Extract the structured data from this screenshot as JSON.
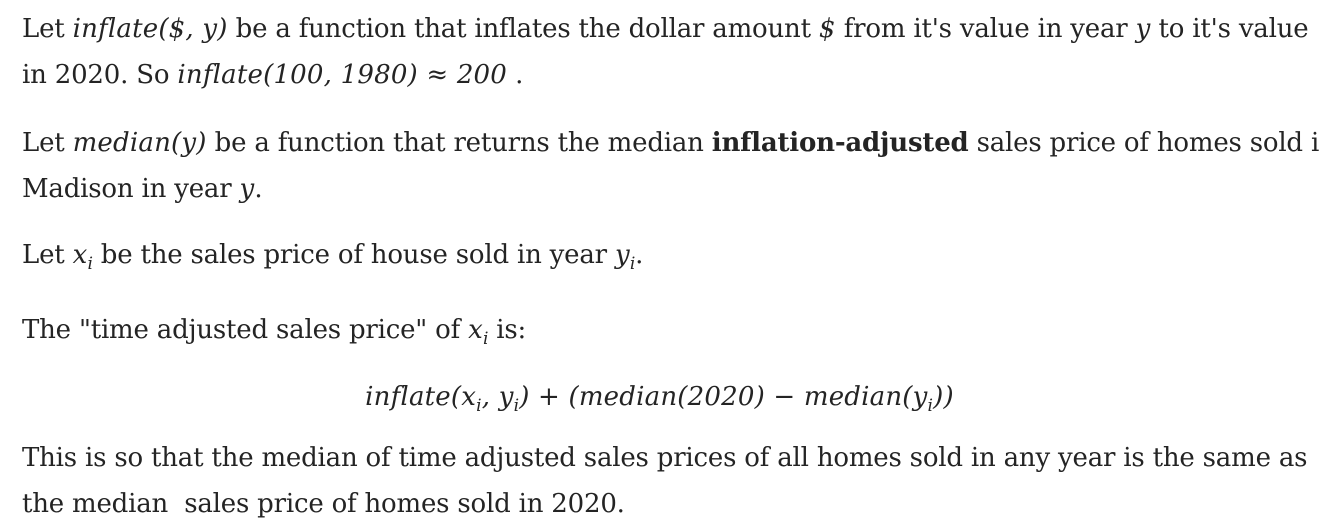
{
  "paragraph1": {
    "text_a": "Let ",
    "math_a": "inflate($, y)",
    "text_b": " be a function that inflates the dollar amount ",
    "math_b": "$",
    "text_c": " from it's value in year ",
    "math_c": "y",
    "text_d": " to it's value",
    "text_e": "in 2020. So ",
    "math_d": "inflate(100, 1980) ≈ 200",
    "text_f": " ."
  },
  "paragraph2": {
    "text_a": "Let ",
    "math_a": "median(y)",
    "text_b": " be a function that returns the median ",
    "bold": "inflation-adjusted",
    "text_c": " sales price of homes sold in",
    "text_d": "Madison in year ",
    "math_b": "y",
    "text_e": "."
  },
  "paragraph3": {
    "text_a": "Let ",
    "math_x": "x",
    "sub_x": "i",
    "text_b": " be the sales price of house sold in year ",
    "math_y": "y",
    "sub_y": "i",
    "text_c": "."
  },
  "paragraph4": {
    "text_a": "The \"time adjusted sales price\" of ",
    "math_x": "x",
    "sub_x": "i",
    "text_b": " is:"
  },
  "formula": {
    "part1": "inflate(",
    "x": "x",
    "xi": "i",
    "comma": ", ",
    "y": "y",
    "yi": "i",
    "part2": ") + (median(2020) − median(",
    "y2": "y",
    "y2i": "i",
    "part3": "))"
  },
  "paragraph5": {
    "line1": "This is so that the median of time adjusted sales prices of all homes sold in any year is the same as",
    "line2": "the median  sales price of homes sold in 2020."
  }
}
